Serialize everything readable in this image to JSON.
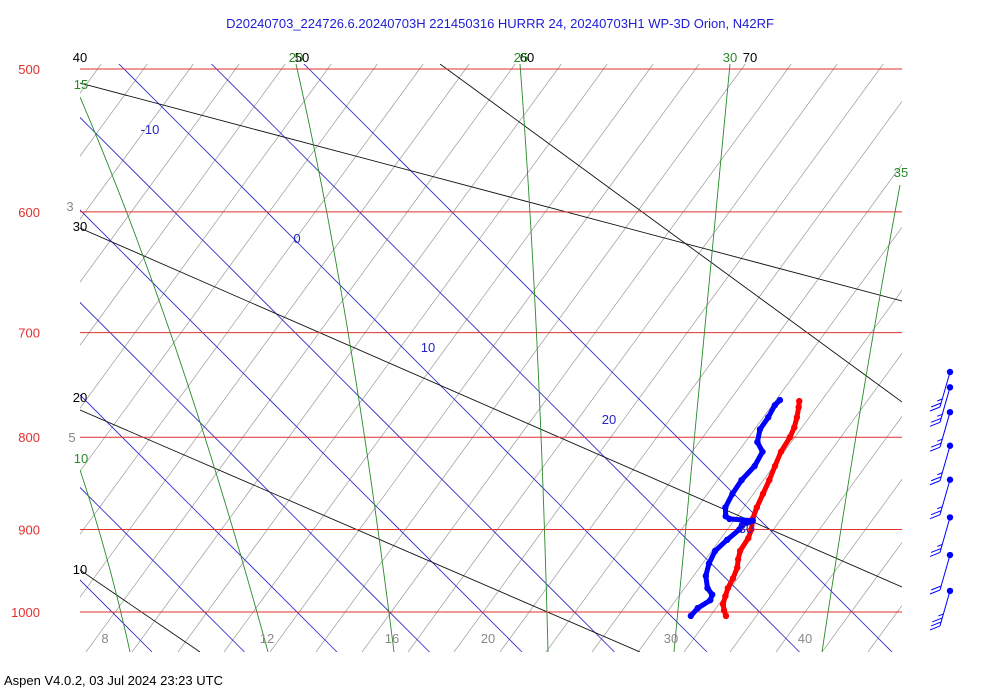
{
  "title": "D20240703_224726.6.20240703H 221450316 HURRR 24, 20240703H1 WP-3D Orion, N42RF",
  "footer": "Aspen V4.0.2, 03 Jul 2024  23:23 UTC",
  "colors": {
    "isobar": "#e03030",
    "isotherm": "#2323c8",
    "dry_adiabat": "#111111",
    "moist_adiabat": "#2a8a2a",
    "mixing_ratio": "#9a9a9a",
    "temperature": "#ff0000",
    "dewpoint": "#0000ff",
    "wind_barb": "#0000ff"
  },
  "chart_data": {
    "type": "line",
    "title": "D20240703_224726.6.20240703H 221450316 HURRR 24, 20240703H1 WP-3D Orion, N42RF",
    "xlabel": "",
    "ylabel": "",
    "pressure_labels": [
      "500",
      "600",
      "700",
      "800",
      "900",
      "1000"
    ],
    "pressure_levels": [
      500,
      600,
      700,
      800,
      900,
      1000
    ],
    "isotherm_labels": [
      "-10",
      "0",
      "10",
      "20",
      "30"
    ],
    "isotherm_values": [
      -10,
      0,
      10,
      20,
      30
    ],
    "bottom_axis_labels": [
      "8",
      "12",
      "16",
      "20",
      "30",
      "40"
    ],
    "dry_adiabat_labels": [
      "40",
      "50",
      "60",
      "70",
      "30",
      "20",
      "10"
    ],
    "moist_adiabat_labels": [
      "15",
      "20",
      "25",
      "30",
      "35",
      "10"
    ],
    "mixing_ratio_labels": [
      "3",
      "5"
    ],
    "series": [
      {
        "name": "",
        "values": [
          {
            "p": 1005,
            "t": 26.8
          },
          {
            "p": 998,
            "t": 26.0
          },
          {
            "p": 990,
            "t": 25.2
          },
          {
            "p": 980,
            "t": 24.6
          },
          {
            "p": 970,
            "t": 24.0
          },
          {
            "p": 958,
            "t": 23.5
          },
          {
            "p": 945,
            "t": 22.8
          },
          {
            "p": 935,
            "t": 22.0
          },
          {
            "p": 925,
            "t": 21.3
          },
          {
            "p": 910,
            "t": 20.8
          },
          {
            "p": 900,
            "t": 20.2
          },
          {
            "p": 888,
            "t": 19.2
          },
          {
            "p": 875,
            "t": 18.4
          },
          {
            "p": 860,
            "t": 17.6
          },
          {
            "p": 845,
            "t": 16.8
          },
          {
            "p": 830,
            "t": 15.9
          },
          {
            "p": 815,
            "t": 15.0
          },
          {
            "p": 800,
            "t": 14.4
          },
          {
            "p": 790,
            "t": 13.8
          },
          {
            "p": 780,
            "t": 13.0
          },
          {
            "p": 770,
            "t": 12.1
          },
          {
            "p": 764,
            "t": 11.5
          }
        ]
      },
      {
        "name": "",
        "values": [
          {
            "p": 1005,
            "t": 23.0
          },
          {
            "p": 995,
            "t": 22.9
          },
          {
            "p": 985,
            "t": 23.4
          },
          {
            "p": 978,
            "t": 23.0
          },
          {
            "p": 970,
            "t": 21.8
          },
          {
            "p": 955,
            "t": 20.3
          },
          {
            "p": 940,
            "t": 19.3
          },
          {
            "p": 925,
            "t": 18.6
          },
          {
            "p": 912,
            "t": 18.7
          },
          {
            "p": 900,
            "t": 18.9
          },
          {
            "p": 895,
            "t": 18.7
          },
          {
            "p": 890,
            "t": 19.4
          },
          {
            "p": 888,
            "t": 16.7
          },
          {
            "p": 885,
            "t": 16.0
          },
          {
            "p": 875,
            "t": 15.0
          },
          {
            "p": 860,
            "t": 14.3
          },
          {
            "p": 845,
            "t": 13.8
          },
          {
            "p": 830,
            "t": 13.7
          },
          {
            "p": 815,
            "t": 13.0
          },
          {
            "p": 805,
            "t": 11.4
          },
          {
            "p": 792,
            "t": 10.3
          },
          {
            "p": 780,
            "t": 9.9
          },
          {
            "p": 768,
            "t": 9.3
          },
          {
            "p": 763,
            "t": 9.3
          }
        ]
      }
    ],
    "wind_barbs": [
      {
        "p": 1005,
        "speed_kt": 25
      },
      {
        "p": 960,
        "speed_kt": 20
      },
      {
        "p": 915,
        "speed_kt": 15
      },
      {
        "p": 872,
        "speed_kt": 15
      },
      {
        "p": 835,
        "speed_kt": 15
      },
      {
        "p": 800,
        "speed_kt": 15
      },
      {
        "p": 775,
        "speed_kt": 15
      },
      {
        "p": 760,
        "speed_kt": 15
      }
    ]
  }
}
